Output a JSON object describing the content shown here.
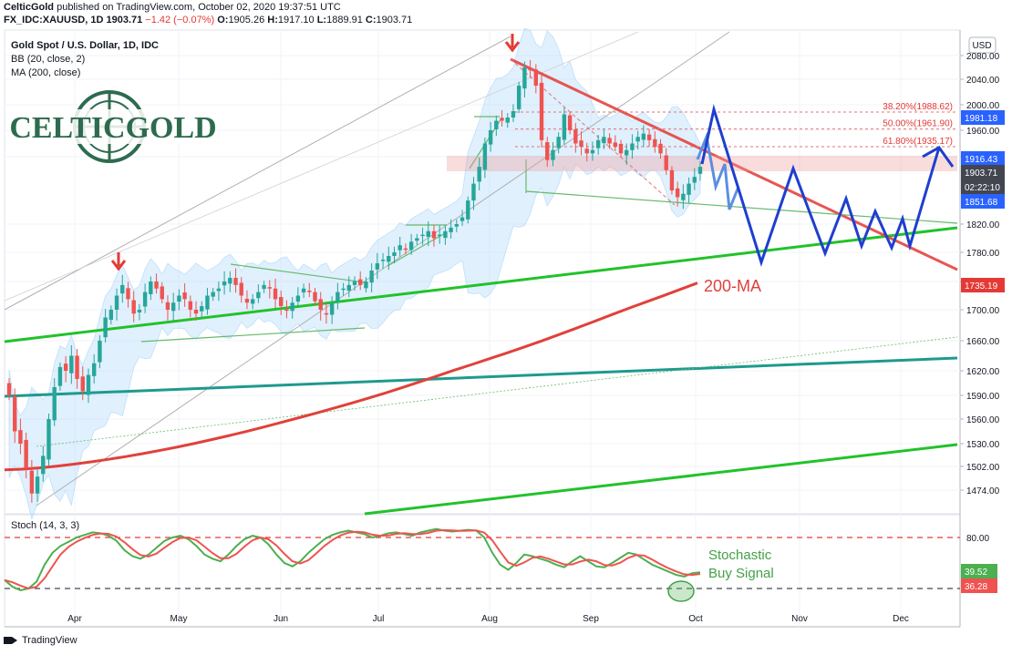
{
  "header": {
    "publisher": "CelticGold",
    "published_text": "published on TradingView.com, October 02, 2020 19:37:51 UTC",
    "symbol": "FX_IDC:XAUUSD, 1D",
    "last": "1903.71",
    "change": "−1.42 (−0.07%)",
    "o_label": "O:",
    "o": "1905.26",
    "h_label": "H:",
    "h": "1917.10",
    "l_label": "L:",
    "l": "1889.91",
    "c_label": "C:",
    "c": "1903.71"
  },
  "legend": {
    "title": "Gold Spot / U.S. Dollar, 1D, IDC",
    "bb": "BB (20, close, 2)",
    "ma": "MA (200, close)",
    "stoch": "Stoch (14, 3, 3)"
  },
  "logo_text": "CELTICGOLD",
  "currency": "USD",
  "annotations": {
    "ma_label": "200-MA",
    "stoch_line1": "Stochastic",
    "stoch_line2": "Buy Signal"
  },
  "footer": {
    "brand": "TradingView"
  },
  "chart_data": {
    "type": "candlestick",
    "x_labels": [
      "Apr",
      "May",
      "Jun",
      "Jul",
      "Aug",
      "Sep",
      "Oct",
      "Nov",
      "Dec"
    ],
    "price_axis_ticks": [
      "2080.00",
      "2040.00",
      "2000.00",
      "1960.00",
      "1920.00",
      "1820.00",
      "1780.00",
      "1740.00",
      "1700.00",
      "1660.00",
      "1620.00",
      "1590.00",
      "1560.00",
      "1530.00",
      "1502.00",
      "1474.00"
    ],
    "price_badges": [
      {
        "value": "1981.18",
        "color": "#2962ff"
      },
      {
        "value": "1916.43",
        "color": "#2962ff"
      },
      {
        "value": "1903.71",
        "color": "#434651"
      },
      {
        "value": "02:22:10",
        "color": "#434651"
      },
      {
        "value": "1851.68",
        "color": "#2962ff"
      },
      {
        "value": "1735.19",
        "color": "#e53935"
      }
    ],
    "fib_levels": [
      {
        "label": "38.20%(1988.62)",
        "value": 1988.62
      },
      {
        "label": "50.00%(1961.90)",
        "value": 1961.9
      },
      {
        "label": "61.80%(1935.17)",
        "value": 1935.17
      }
    ],
    "stoch_axis_ticks": [
      "80.00"
    ],
    "stoch_badges": [
      {
        "value": "39.52",
        "color": "#4caf50"
      },
      {
        "value": "36.28",
        "color": "#ef5350"
      }
    ],
    "approx_closes": [
      1590,
      1545,
      1530,
      1500,
      1470,
      1490,
      1515,
      1560,
      1600,
      1625,
      1620,
      1640,
      1610,
      1595,
      1615,
      1630,
      1660,
      1690,
      1700,
      1720,
      1735,
      1715,
      1695,
      1700,
      1725,
      1740,
      1730,
      1715,
      1700,
      1710,
      1720,
      1715,
      1700,
      1695,
      1705,
      1720,
      1725,
      1730,
      1740,
      1745,
      1735,
      1720,
      1710,
      1715,
      1725,
      1735,
      1730,
      1715,
      1705,
      1700,
      1710,
      1720,
      1730,
      1725,
      1712,
      1700,
      1695,
      1710,
      1725,
      1730,
      1735,
      1740,
      1735,
      1740,
      1755,
      1765,
      1770,
      1775,
      1780,
      1790,
      1785,
      1795,
      1800,
      1805,
      1810,
      1800,
      1805,
      1810,
      1815,
      1820,
      1830,
      1855,
      1880,
      1905,
      1940,
      1960,
      1975,
      1975,
      1980,
      1990,
      2030,
      2060,
      2055,
      2030,
      1945,
      1915,
      1930,
      1950,
      1985,
      1960,
      1940,
      1935,
      1925,
      1930,
      1945,
      1950,
      1940,
      1935,
      1925,
      1930,
      1940,
      1950,
      1955,
      1945,
      1935,
      1925,
      1900,
      1870,
      1860,
      1865,
      1880,
      1890,
      1905
    ],
    "approx_stoch": [
      30,
      22,
      18,
      20,
      28,
      48,
      62,
      70,
      75,
      80,
      83,
      86,
      85,
      82,
      76,
      65,
      58,
      55,
      60,
      68,
      76,
      80,
      82,
      78,
      70,
      60,
      55,
      52,
      60,
      70,
      78,
      82,
      80,
      72,
      60,
      50,
      46,
      52,
      62,
      70,
      78,
      83,
      86,
      88,
      86,
      84,
      80,
      82,
      85,
      86,
      84,
      82,
      86,
      88,
      90,
      88,
      87,
      88,
      89,
      88,
      80,
      62,
      48,
      42,
      50,
      60,
      58,
      55,
      52,
      48,
      45,
      52,
      58,
      52,
      46,
      45,
      50,
      56,
      62,
      60,
      54,
      48,
      44,
      40,
      36,
      34,
      38,
      39
    ]
  }
}
